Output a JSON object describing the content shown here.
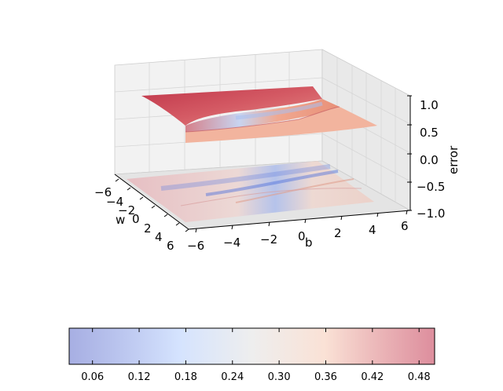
{
  "chart_data": {
    "type": "surface3d",
    "title": "",
    "xlabel": "w",
    "ylabel": "b",
    "zlabel": "error",
    "x_ticks": [
      "−6",
      "−4",
      "−2",
      "0",
      "2",
      "4",
      "6"
    ],
    "y_ticks": [
      "−6",
      "−4",
      "−2",
      "0",
      "2",
      "4",
      "6"
    ],
    "z_ticks": [
      "−1.0",
      "−0.5",
      "0.0",
      "0.5",
      "1.0"
    ],
    "xlim": [
      -6,
      6
    ],
    "ylim": [
      -6,
      6
    ],
    "zlim": [
      -1.0,
      1.0
    ],
    "grid": true,
    "colormap": "coolwarm",
    "colorbar": {
      "orientation": "horizontal",
      "position": "bottom",
      "range": [
        0.03,
        0.5
      ],
      "ticks": [
        "0.06",
        "0.12",
        "0.18",
        "0.24",
        "0.30",
        "0.36",
        "0.42",
        "0.48"
      ]
    },
    "surface": {
      "description_levels": "upper surface near error 0.5–0.9 with a trough along w≈0; contour projection at z=−1",
      "colors": {
        "high": "#b40426",
        "mid": "#dddddd",
        "low": "#3b4cc0"
      }
    }
  }
}
